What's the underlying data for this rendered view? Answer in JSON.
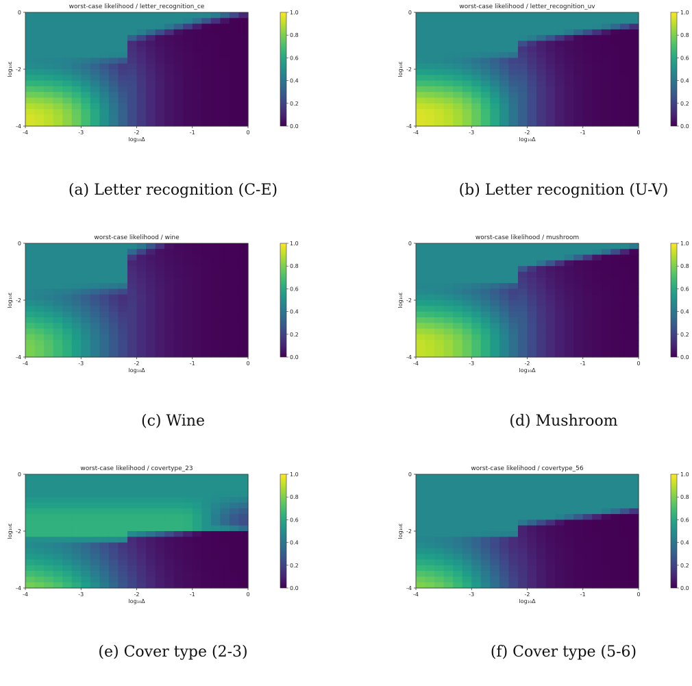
{
  "colorbar_ticks": [
    "0.0",
    "0.2",
    "0.4",
    "0.6",
    "0.8",
    "1.0"
  ],
  "x_ticks": [
    "-4",
    "-3",
    "-2",
    "-1",
    "0"
  ],
  "y_ticks": [
    "0",
    "-2",
    "-4"
  ],
  "xlabel": "log₁₀Δ",
  "ylabel": "log₁₀ε",
  "colormap": "viridis",
  "chart_data": [
    {
      "type": "heatmap",
      "title": "worst-case likelihood / letter_recognition_ce",
      "caption": "(a) Letter recognition (C-E)",
      "xlabel": "log₁₀Δ",
      "ylabel": "log₁₀ε",
      "xlim": [
        -4,
        0
      ],
      "ylim": [
        -4,
        0
      ],
      "clim": [
        0,
        1
      ],
      "grid": [
        24,
        20
      ],
      "plateau": {
        "value": 0.47,
        "eps_cut": -1.55,
        "slope": 0.45,
        "width": 0.45
      },
      "corner": {
        "value": 0.97,
        "falloff_delta": -2.55,
        "width": 0.4
      }
    },
    {
      "type": "heatmap",
      "title": "worst-case likelihood / letter_recognition_uv",
      "caption": "(b) Letter recognition (U-V)",
      "xlabel": "log₁₀Δ",
      "ylabel": "log₁₀ε",
      "xlim": [
        -4,
        0
      ],
      "ylim": [
        -4,
        0
      ],
      "clim": [
        0,
        1
      ],
      "grid": [
        24,
        20
      ],
      "plateau": {
        "value": 0.47,
        "eps_cut": -1.45,
        "slope": 0.3,
        "width": 0.35
      },
      "corner": {
        "value": 0.97,
        "falloff_delta": -2.4,
        "width": 0.4
      }
    },
    {
      "type": "heatmap",
      "title": "worst-case likelihood / wine",
      "caption": "(c) Wine",
      "xlabel": "log₁₀Δ",
      "ylabel": "log₁₀ε",
      "xlim": [
        -4,
        0
      ],
      "ylim": [
        -4,
        0
      ],
      "clim": [
        0,
        1
      ],
      "grid": [
        24,
        20
      ],
      "plateau": {
        "value": 0.47,
        "eps_cut": -1.5,
        "slope": 0.75,
        "width": 0.6
      },
      "corner": {
        "value": 0.88,
        "falloff_delta": -2.8,
        "width": 0.5
      }
    },
    {
      "type": "heatmap",
      "title": "worst-case likelihood / mushroom",
      "caption": "(d) Mushroom",
      "xlabel": "log₁₀Δ",
      "ylabel": "log₁₀ε",
      "xlim": [
        -4,
        0
      ],
      "ylim": [
        -4,
        0
      ],
      "clim": [
        0,
        1
      ],
      "grid": [
        24,
        20
      ],
      "plateau": {
        "value": 0.47,
        "eps_cut": -1.4,
        "slope": 0.35,
        "width": 0.3
      },
      "corner": {
        "value": 0.95,
        "falloff_delta": -2.45,
        "width": 0.45
      }
    },
    {
      "type": "heatmap",
      "title": "worst-case likelihood / covertype_23",
      "caption": "(e) Cover type (2-3)",
      "xlabel": "log₁₀Δ",
      "ylabel": "log₁₀ε",
      "xlim": [
        -4,
        0
      ],
      "ylim": [
        -4,
        0
      ],
      "clim": [
        0,
        1
      ],
      "grid": [
        24,
        20
      ],
      "plateau": {
        "value": 0.5,
        "eps_cut": -2.3,
        "slope": 0.12,
        "width": 0.2
      },
      "corner": {
        "value": 0.9,
        "falloff_delta": -2.6,
        "width": 0.45
      },
      "band": {
        "value": 0.64,
        "eps_top": -0.6,
        "fade_delta": -1.2
      }
    },
    {
      "type": "heatmap",
      "title": "worst-case likelihood / covertype_56",
      "caption": "(f) Cover type (5-6)",
      "xlabel": "log₁₀Δ",
      "ylabel": "log₁₀ε",
      "xlim": [
        -4,
        0
      ],
      "ylim": [
        -4,
        0
      ],
      "clim": [
        0,
        1
      ],
      "grid": [
        24,
        20
      ],
      "plateau": {
        "value": 0.47,
        "eps_cut": -2.1,
        "slope": 0.25,
        "width": 0.3
      },
      "corner": {
        "value": 0.88,
        "falloff_delta": -2.7,
        "width": 0.4
      }
    }
  ]
}
